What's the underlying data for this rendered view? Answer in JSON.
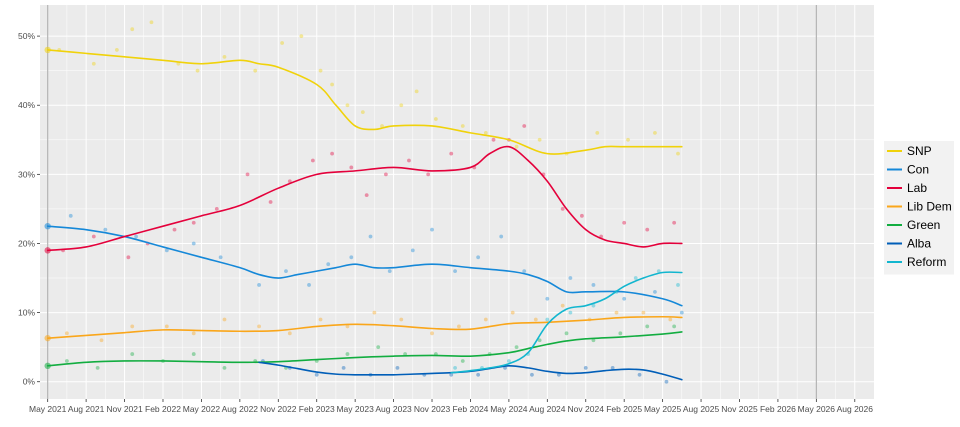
{
  "chart_data": {
    "type": "line",
    "title": "",
    "xlabel": "",
    "ylabel": "",
    "x_ticks": [
      "May 2021",
      "Aug 2021",
      "Nov 2021",
      "Feb 2022",
      "May 2022",
      "Aug 2022",
      "Nov 2022",
      "Feb 2023",
      "May 2023",
      "Aug 2023",
      "Nov 2023",
      "Feb 2024",
      "May 2024",
      "Aug 2024",
      "Nov 2024",
      "Feb 2025",
      "May 2025",
      "Aug 2025",
      "Nov 2025",
      "Feb 2026",
      "May 2026",
      "Aug 2026"
    ],
    "xlim": [
      -0.2,
      21.5
    ],
    "ylim": [
      -2.5,
      54.5
    ],
    "y_ticks": [
      0,
      10,
      20,
      30,
      40,
      50
    ],
    "y_tick_labels": [
      "0%",
      "10%",
      "20%",
      "30%",
      "40%",
      "50%"
    ],
    "reference_lines_x": [
      0,
      20
    ],
    "grid": true,
    "legend_position": "right",
    "background": "#ebebeb",
    "series": [
      {
        "name": "SNP",
        "color": "#f0d20a",
        "x": [
          0,
          1,
          2,
          3,
          4,
          5,
          5.5,
          6,
          7,
          7.5,
          8,
          8.5,
          9,
          10,
          11,
          12,
          13,
          14,
          14.5,
          15,
          16,
          16.5
        ],
        "y": [
          48,
          47.5,
          47,
          46.5,
          46,
          46.5,
          46,
          45.5,
          43,
          40,
          37,
          36.5,
          37,
          37,
          36,
          35,
          33,
          33.5,
          34,
          34,
          34,
          34
        ],
        "scatter": [
          [
            0.3,
            48
          ],
          [
            1.2,
            46
          ],
          [
            1.8,
            48
          ],
          [
            2.7,
            52
          ],
          [
            2.2,
            51
          ],
          [
            3.4,
            46
          ],
          [
            3.9,
            45
          ],
          [
            4.6,
            47
          ],
          [
            5.4,
            45
          ],
          [
            6.1,
            49
          ],
          [
            6.6,
            50
          ],
          [
            7.1,
            45
          ],
          [
            7.4,
            43
          ],
          [
            7.8,
            40
          ],
          [
            8.2,
            39
          ],
          [
            8.7,
            37
          ],
          [
            9.2,
            40
          ],
          [
            9.6,
            42
          ],
          [
            10.1,
            38
          ],
          [
            10.8,
            37
          ],
          [
            11.4,
            36
          ],
          [
            12.2,
            34
          ],
          [
            12.8,
            35
          ],
          [
            13.5,
            33
          ],
          [
            14.3,
            36
          ],
          [
            15.1,
            35
          ],
          [
            15.8,
            36
          ],
          [
            16.4,
            33
          ]
        ]
      },
      {
        "name": "Con",
        "color": "#1588d8",
        "x": [
          0,
          1,
          2,
          3,
          4,
          5,
          5.5,
          6,
          6.5,
          7,
          7.5,
          8,
          8.5,
          9,
          10,
          11,
          12,
          12.5,
          13,
          13.5,
          14,
          15,
          16,
          16.5
        ],
        "y": [
          22.5,
          22,
          21,
          19.5,
          18,
          16.5,
          15.5,
          15,
          15.5,
          16,
          16.5,
          17,
          16.5,
          16.5,
          17,
          16.5,
          16,
          15.5,
          14.5,
          13,
          13,
          13,
          12,
          11
        ],
        "scatter": [
          [
            0.6,
            24
          ],
          [
            1.5,
            22
          ],
          [
            2.3,
            21
          ],
          [
            3.1,
            19
          ],
          [
            3.8,
            20
          ],
          [
            4.5,
            18
          ],
          [
            5.5,
            14
          ],
          [
            6.2,
            16
          ],
          [
            6.8,
            14
          ],
          [
            7.3,
            17
          ],
          [
            7.9,
            18
          ],
          [
            8.4,
            21
          ],
          [
            8.9,
            16
          ],
          [
            9.5,
            19
          ],
          [
            10.0,
            22
          ],
          [
            10.6,
            16
          ],
          [
            11.2,
            18
          ],
          [
            11.8,
            21
          ],
          [
            12.4,
            16
          ],
          [
            13.0,
            12
          ],
          [
            13.6,
            15
          ],
          [
            14.2,
            14
          ],
          [
            15.0,
            12
          ],
          [
            15.8,
            13
          ],
          [
            16.5,
            10
          ]
        ]
      },
      {
        "name": "Lab",
        "color": "#e4003b",
        "x": [
          0,
          1,
          2,
          3,
          4,
          5,
          6,
          7,
          8,
          9,
          10,
          11,
          11.5,
          12,
          12.5,
          13,
          13.5,
          14,
          14.5,
          15,
          15.5,
          16,
          16.5
        ],
        "y": [
          19,
          19.5,
          21,
          22.5,
          24,
          25.5,
          28,
          30,
          30.5,
          31,
          30.5,
          31,
          33,
          34,
          32,
          29,
          25,
          22,
          20.5,
          20,
          19.5,
          20,
          20
        ],
        "scatter": [
          [
            0.4,
            19
          ],
          [
            1.2,
            21
          ],
          [
            2.1,
            18
          ],
          [
            2.6,
            20
          ],
          [
            3.3,
            22
          ],
          [
            3.8,
            23
          ],
          [
            4.4,
            25
          ],
          [
            5.2,
            30
          ],
          [
            5.8,
            26
          ],
          [
            6.3,
            29
          ],
          [
            6.9,
            32
          ],
          [
            7.4,
            33
          ],
          [
            7.9,
            31
          ],
          [
            8.3,
            27
          ],
          [
            8.8,
            30
          ],
          [
            9.4,
            32
          ],
          [
            9.9,
            30
          ],
          [
            10.5,
            33
          ],
          [
            11.1,
            31
          ],
          [
            11.6,
            35
          ],
          [
            12.0,
            35
          ],
          [
            12.4,
            37
          ],
          [
            12.9,
            30
          ],
          [
            13.4,
            25
          ],
          [
            13.9,
            24
          ],
          [
            14.4,
            21
          ],
          [
            15.0,
            23
          ],
          [
            15.6,
            22
          ],
          [
            16.3,
            23
          ]
        ]
      },
      {
        "name": "Lib Dem",
        "color": "#faa61a",
        "x": [
          0,
          1,
          2,
          3,
          4,
          5,
          6,
          7,
          8,
          9,
          10,
          11,
          12,
          13,
          14,
          15,
          16,
          16.5
        ],
        "y": [
          6.3,
          6.7,
          7.1,
          7.5,
          7.4,
          7.3,
          7.4,
          8,
          8.3,
          8.1,
          7.7,
          7.6,
          8.4,
          8.6,
          8.9,
          9.3,
          9.4,
          9.3
        ],
        "scatter": [
          [
            0.5,
            7
          ],
          [
            1.4,
            6
          ],
          [
            2.2,
            8
          ],
          [
            3.1,
            8
          ],
          [
            3.8,
            7
          ],
          [
            4.6,
            9
          ],
          [
            5.5,
            8
          ],
          [
            6.3,
            7
          ],
          [
            7.1,
            9
          ],
          [
            7.8,
            8
          ],
          [
            8.5,
            10
          ],
          [
            9.2,
            9
          ],
          [
            10.0,
            7
          ],
          [
            10.7,
            8
          ],
          [
            11.4,
            9
          ],
          [
            12.1,
            10
          ],
          [
            12.7,
            9
          ],
          [
            13.4,
            11
          ],
          [
            14.1,
            9
          ],
          [
            14.8,
            10
          ],
          [
            15.5,
            10
          ],
          [
            16.2,
            9
          ]
        ]
      },
      {
        "name": "Green",
        "color": "#12ad40",
        "x": [
          0,
          1,
          2,
          3,
          4,
          5,
          6,
          7,
          8,
          9,
          10,
          11,
          12,
          12.5,
          13,
          13.5,
          14,
          15,
          16,
          16.5
        ],
        "y": [
          2.3,
          2.8,
          3,
          3,
          2.9,
          2.8,
          2.9,
          3.2,
          3.5,
          3.7,
          3.8,
          3.7,
          4.2,
          4.8,
          5.4,
          5.9,
          6.2,
          6.5,
          6.9,
          7.2
        ],
        "scatter": [
          [
            0.5,
            3
          ],
          [
            1.3,
            2
          ],
          [
            2.2,
            4
          ],
          [
            3.0,
            3
          ],
          [
            3.8,
            4
          ],
          [
            4.6,
            2
          ],
          [
            5.4,
            3
          ],
          [
            6.2,
            2
          ],
          [
            7.0,
            3
          ],
          [
            7.8,
            4
          ],
          [
            8.6,
            5
          ],
          [
            9.3,
            4
          ],
          [
            10.1,
            4
          ],
          [
            10.8,
            3
          ],
          [
            11.5,
            4
          ],
          [
            12.2,
            5
          ],
          [
            12.8,
            6
          ],
          [
            13.5,
            7
          ],
          [
            14.2,
            6
          ],
          [
            14.9,
            7
          ],
          [
            15.6,
            8
          ],
          [
            16.3,
            8
          ]
        ]
      },
      {
        "name": "Alba",
        "color": "#005eb8",
        "x": [
          5.5,
          6,
          6.5,
          7,
          7.5,
          8,
          8.5,
          9,
          9.5,
          10,
          10.5,
          11,
          11.5,
          12,
          12.5,
          13,
          13.5,
          14,
          14.5,
          15,
          15.5,
          16,
          16.5
        ],
        "y": [
          2.8,
          2.4,
          1.9,
          1.4,
          1.1,
          1,
          1,
          1,
          1.1,
          1.2,
          1.3,
          1.5,
          1.9,
          2.3,
          2,
          1.5,
          1.2,
          1.3,
          1.6,
          1.8,
          1.7,
          1.1,
          0.3
        ],
        "scatter": [
          [
            5.6,
            3
          ],
          [
            6.3,
            2
          ],
          [
            7.0,
            1
          ],
          [
            7.7,
            2
          ],
          [
            8.4,
            1
          ],
          [
            9.1,
            2
          ],
          [
            9.8,
            1
          ],
          [
            10.5,
            1
          ],
          [
            11.2,
            1
          ],
          [
            11.9,
            2
          ],
          [
            12.6,
            1
          ],
          [
            13.3,
            1
          ],
          [
            14.0,
            2
          ],
          [
            14.7,
            2
          ],
          [
            15.4,
            1
          ],
          [
            16.1,
            0
          ]
        ]
      },
      {
        "name": "Reform",
        "color": "#12b6cf",
        "x": [
          10.5,
          11,
          11.5,
          12,
          12.5,
          13,
          13.5,
          14,
          14.5,
          15,
          15.5,
          16,
          16.5
        ],
        "y": [
          1.3,
          1.6,
          2,
          2.6,
          4.2,
          8.3,
          10.5,
          11,
          12,
          13.8,
          15,
          15.8,
          15.8
        ],
        "scatter": [
          [
            10.6,
            2
          ],
          [
            11.3,
            2
          ],
          [
            12.0,
            3
          ],
          [
            12.5,
            4
          ],
          [
            13.0,
            9
          ],
          [
            13.6,
            10
          ],
          [
            14.2,
            11
          ],
          [
            14.8,
            13
          ],
          [
            15.3,
            15
          ],
          [
            15.9,
            16
          ],
          [
            16.4,
            14
          ]
        ]
      }
    ]
  }
}
